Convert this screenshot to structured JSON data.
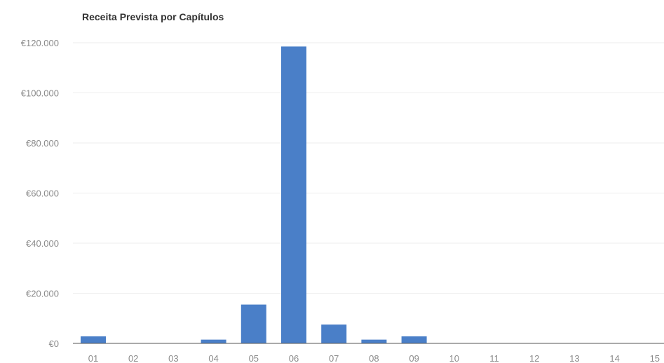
{
  "chart_data": {
    "type": "bar",
    "title": "Receita Prevista por Capítulos",
    "xlabel": "",
    "ylabel": "",
    "categories": [
      "01",
      "02",
      "03",
      "04",
      "05",
      "06",
      "07",
      "08",
      "09",
      "10",
      "11",
      "12",
      "13",
      "14",
      "15"
    ],
    "values": [
      2800,
      0,
      0,
      1500,
      15500,
      118500,
      7500,
      1500,
      2800,
      0,
      0,
      0,
      0,
      0,
      0
    ],
    "ylim": [
      0,
      120000
    ],
    "yticks": [
      0,
      20000,
      40000,
      60000,
      80000,
      100000,
      120000
    ],
    "ytick_labels": [
      "€0",
      "€20.000",
      "€40.000",
      "€60.000",
      "€80.000",
      "€100.000",
      "€120.000"
    ],
    "bar_color": "#4a7fc8",
    "grid": true,
    "legend": "none"
  }
}
